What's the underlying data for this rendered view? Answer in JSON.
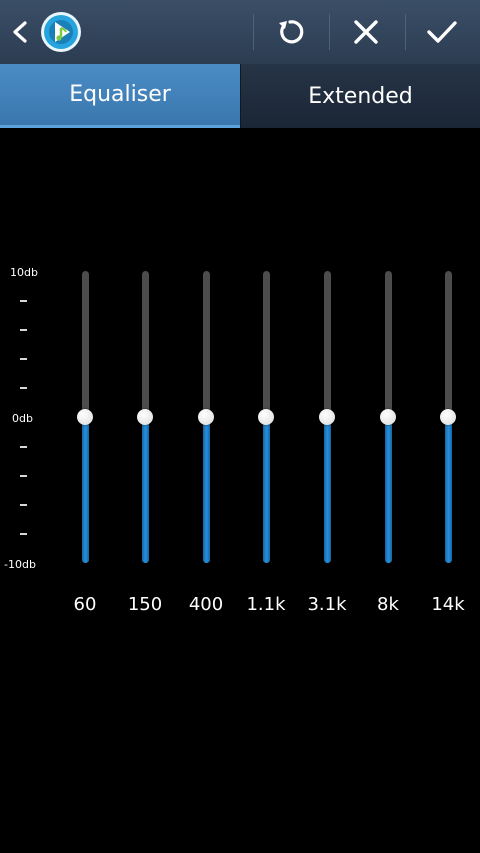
{
  "action_bar": {
    "back_icon": "chevron-left-icon",
    "logo_icon": "music-player-logo-icon",
    "buttons": [
      {
        "name": "reset",
        "icon": "rotate-ccw-icon"
      },
      {
        "name": "cancel",
        "icon": "close-icon"
      },
      {
        "name": "done",
        "icon": "check-icon"
      }
    ],
    "background": "#33465c"
  },
  "tabs": [
    {
      "label": "Equaliser",
      "active": true
    },
    {
      "label": "Extended",
      "active": false
    }
  ],
  "equaliser": {
    "scale": {
      "max_label": "10db",
      "mid_label": "0db",
      "min_label": "-10db",
      "min": -10,
      "max": 10
    },
    "bands": [
      {
        "label": "60",
        "value": 0
      },
      {
        "label": "150",
        "value": 0
      },
      {
        "label": "400",
        "value": 0
      },
      {
        "label": "1.1k",
        "value": 0
      },
      {
        "label": "3.1k",
        "value": 0
      },
      {
        "label": "8k",
        "value": 0
      },
      {
        "label": "14k",
        "value": 0
      }
    ],
    "track_color": "#4c4c4c",
    "fill_color": "#2691e0",
    "thumb_color": "#ffffff"
  }
}
